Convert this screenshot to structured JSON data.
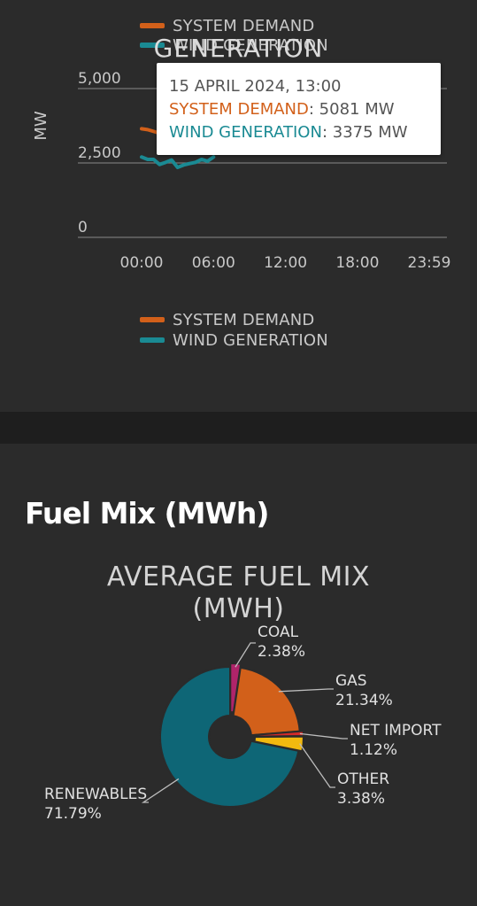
{
  "top_panel": {
    "title_fragment": "GENERATION",
    "legend_top": [
      {
        "label": "SYSTEM DEMAND",
        "color": "#d2601a"
      },
      {
        "label": "WIND GENERATION",
        "color": "#1a8a93"
      }
    ],
    "legend_bottom": [
      {
        "label": "SYSTEM DEMAND",
        "color": "#d2601a"
      },
      {
        "label": "WIND GENERATION",
        "color": "#1a8a93"
      }
    ],
    "tooltip": {
      "date": "15 APRIL 2024, 13:00",
      "demand_label": "SYSTEM DEMAND",
      "demand_value": ": 5081 MW",
      "wind_label": "WIND GENERATION",
      "wind_value": ": 3375 MW"
    }
  },
  "fuel_section": {
    "heading": "Fuel Mix (MWh)",
    "pie_title_line1": "AVERAGE FUEL MIX",
    "pie_title_line2": "(MWH)"
  },
  "chart_data": [
    {
      "type": "line",
      "ylabel": "MW",
      "ylim": [
        0,
        5000
      ],
      "yticks": [
        "5,000",
        "2,500",
        "0"
      ],
      "xticks": [
        "00:00",
        "06:00",
        "12:00",
        "18:00",
        "23:59"
      ],
      "series": [
        {
          "name": "SYSTEM DEMAND",
          "color": "#d2601a",
          "x": [
            "00:00",
            "00:30",
            "01:00",
            "01:30"
          ],
          "values": [
            3650,
            3620,
            3560,
            3500
          ]
        },
        {
          "name": "WIND GENERATION",
          "color": "#1a8a93",
          "x": [
            "00:00",
            "00:30",
            "01:00",
            "01:30",
            "02:00",
            "02:30",
            "03:00",
            "03:30",
            "04:00",
            "04:30",
            "05:00",
            "05:30",
            "06:00"
          ],
          "values": [
            2700,
            2620,
            2620,
            2450,
            2520,
            2600,
            2350,
            2430,
            2480,
            2520,
            2620,
            2560,
            2700
          ]
        }
      ],
      "grid": true,
      "legend": "top and bottom"
    },
    {
      "type": "pie",
      "title": "AVERAGE FUEL MIX (MWH)",
      "slices": [
        {
          "label": "COAL",
          "value": 2.38,
          "display": "2.38%",
          "color": "#b0246a"
        },
        {
          "label": "GAS",
          "value": 21.34,
          "display": "21.34%",
          "color": "#d2601a"
        },
        {
          "label": "NET IMPORT",
          "value": 1.12,
          "display": "1.12%",
          "color": "#d42a2a"
        },
        {
          "label": "OTHER",
          "value": 3.38,
          "display": "3.38%",
          "color": "#f2b90f"
        },
        {
          "label": "RENEWABLES",
          "value": 71.79,
          "display": "71.79%",
          "color": "#0e6676"
        }
      ]
    }
  ]
}
